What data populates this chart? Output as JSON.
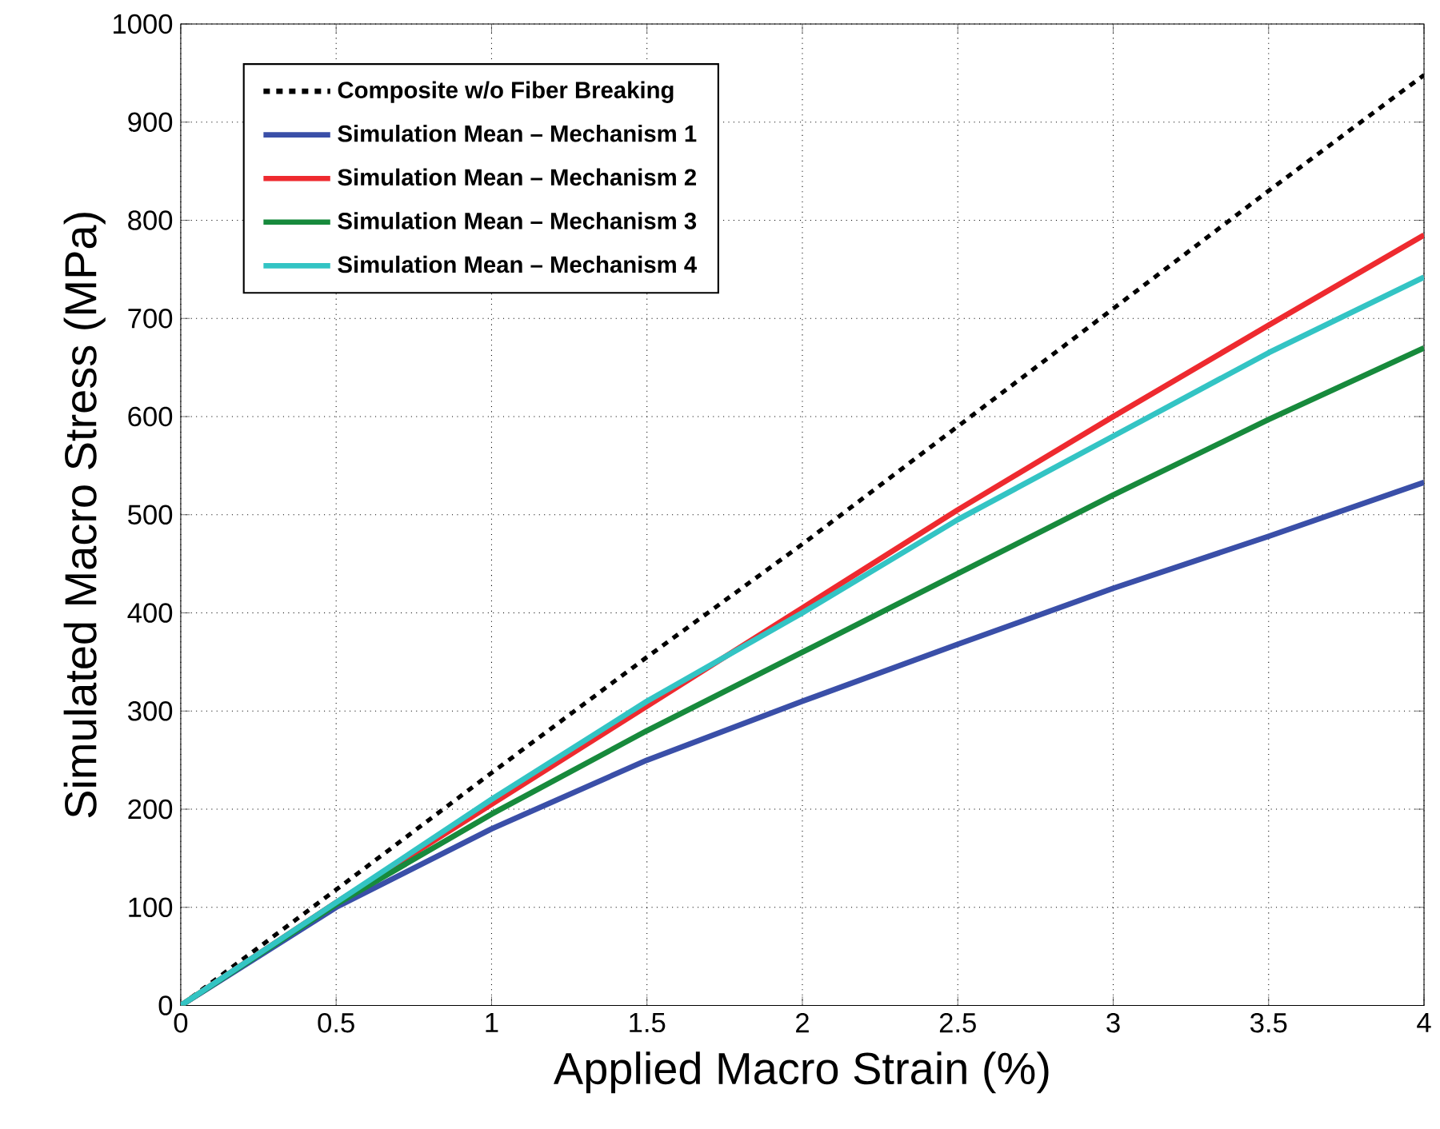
{
  "chart_data": {
    "type": "line",
    "xlabel": "Applied Macro Strain (%)",
    "ylabel": "Simulated Macro Stress (MPa)",
    "x": [
      0,
      0.5,
      1,
      1.5,
      2,
      2.5,
      3,
      3.5,
      4
    ],
    "xlim": [
      0,
      4
    ],
    "xticks": [
      0,
      0.5,
      1,
      1.5,
      2,
      2.5,
      3,
      3.5,
      4
    ],
    "ylim": [
      0,
      1000
    ],
    "yticks": [
      0,
      100,
      200,
      300,
      400,
      500,
      600,
      700,
      800,
      900,
      1000
    ],
    "grid": true,
    "legend": "top left",
    "marker": "none",
    "line_style": "solid",
    "series": [
      {
        "name": "Composite w/o Fiber Breaking",
        "color": "#000000",
        "line_style": "dashed",
        "values": [
          0,
          118,
          237,
          355,
          470,
          590,
          710,
          830,
          948
        ]
      },
      {
        "name": "Simulation Mean  –  Mechanism 1",
        "color": "#3a4fa8",
        "values": [
          0,
          100,
          180,
          250,
          310,
          368,
          425,
          478,
          533
        ]
      },
      {
        "name": "Simulation Mean  –  Mechanism 2",
        "color": "#ee2a2f",
        "values": [
          0,
          105,
          205,
          305,
          405,
          505,
          600,
          693,
          785
        ]
      },
      {
        "name": "Simulation Mean  –  Mechanism 3",
        "color": "#178a3c",
        "values": [
          0,
          103,
          195,
          280,
          360,
          440,
          520,
          597,
          670
        ]
      },
      {
        "name": "Simulation Mean  –  Mechanism 4",
        "color": "#33c4c4",
        "values": [
          0,
          105,
          210,
          310,
          400,
          495,
          580,
          665,
          742
        ]
      }
    ]
  }
}
